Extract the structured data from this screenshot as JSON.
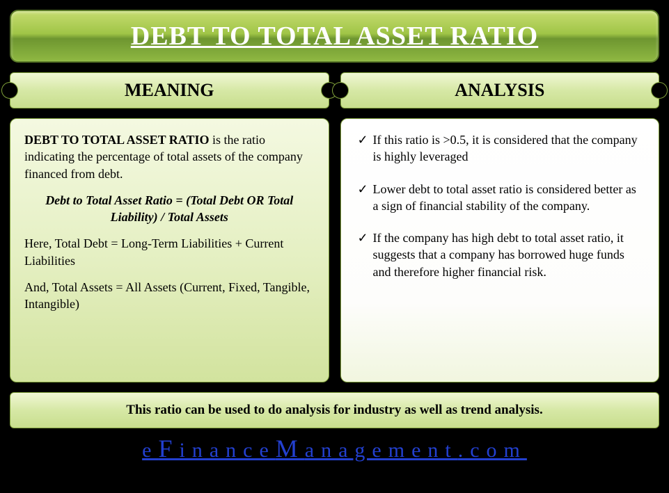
{
  "title": "DEBT TO TOTAL ASSET RATIO",
  "headers": {
    "meaning": "MEANING",
    "analysis": "ANALYSIS"
  },
  "meaning": {
    "lead_bold": "DEBT TO TOTAL ASSET RATIO",
    "lead_rest": " is the ratio indicating the percentage of total assets of the company financed from debt.",
    "formula": "Debt to Total Asset Ratio = (Total Debt OR Total Liability) / Total Assets",
    "line3": "Here, Total Debt = Long-Term Liabilities + Current Liabilities",
    "line4": "And, Total Assets = All Assets (Current, Fixed, Tangible, Intangible)"
  },
  "analysis": {
    "items": [
      "If this ratio is >0.5, it is considered that the company is highly leveraged",
      "Lower debt to total asset ratio is considered better as a sign of financial stability of the company.",
      "If the company has high debt to total asset ratio, it suggests that a company has borrowed huge funds and therefore higher financial risk."
    ]
  },
  "bottom_note": "This ratio can be used to do analysis for industry as well as trend analysis.",
  "site": {
    "e1": "e",
    "F": "F",
    "inance": "inance",
    "M": "M",
    "anagement": "anagement",
    "dotcom": ".com"
  },
  "colors": {
    "banner_gradient_top": "#c5db6f",
    "banner_gradient_bottom": "#8fb842",
    "border": "#7fa03a",
    "link": "#2340d0",
    "background": "#000000"
  }
}
